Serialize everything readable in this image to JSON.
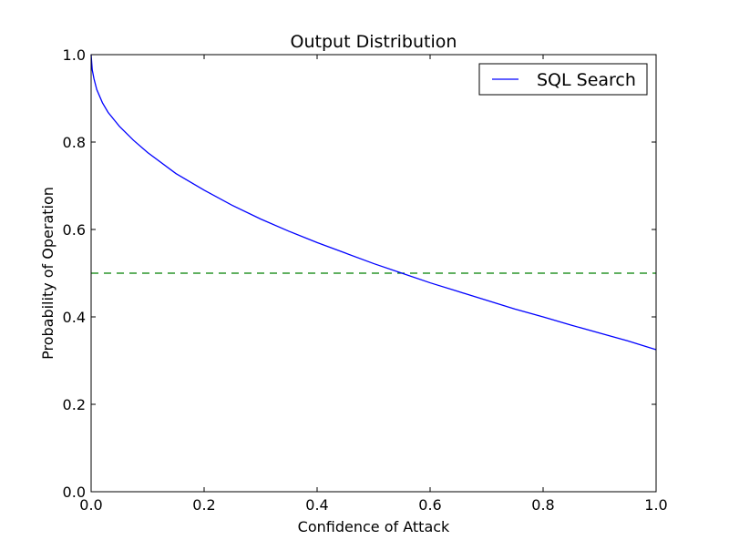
{
  "chart_data": {
    "type": "line",
    "title": "Output Distribution",
    "xlabel": "Confidence of Attack",
    "ylabel": "Probability of Operation",
    "xlim": [
      0,
      1
    ],
    "ylim": [
      0,
      1
    ],
    "xticks": [
      "0.0",
      "0.2",
      "0.4",
      "0.6",
      "0.8",
      "1.0"
    ],
    "yticks": [
      "0.0",
      "0.2",
      "0.4",
      "0.6",
      "0.8",
      "1.0"
    ],
    "grid": false,
    "legend_position": "top-right",
    "series": [
      {
        "name": "SQL Search",
        "color": "#0000ff",
        "style": "solid",
        "x": [
          0.0,
          0.002,
          0.005,
          0.01,
          0.02,
          0.03,
          0.05,
          0.075,
          0.1,
          0.15,
          0.2,
          0.25,
          0.3,
          0.35,
          0.4,
          0.45,
          0.5,
          0.55,
          0.6,
          0.65,
          0.7,
          0.75,
          0.8,
          0.85,
          0.9,
          0.95,
          1.0
        ],
        "y": [
          1.0,
          0.965,
          0.945,
          0.92,
          0.89,
          0.868,
          0.836,
          0.804,
          0.776,
          0.728,
          0.69,
          0.655,
          0.624,
          0.596,
          0.57,
          0.546,
          0.522,
          0.5,
          0.478,
          0.458,
          0.438,
          0.418,
          0.4,
          0.381,
          0.363,
          0.345,
          0.325
        ]
      }
    ],
    "reference_line": {
      "y": 0.5,
      "color": "#008000",
      "style": "dashed"
    }
  }
}
